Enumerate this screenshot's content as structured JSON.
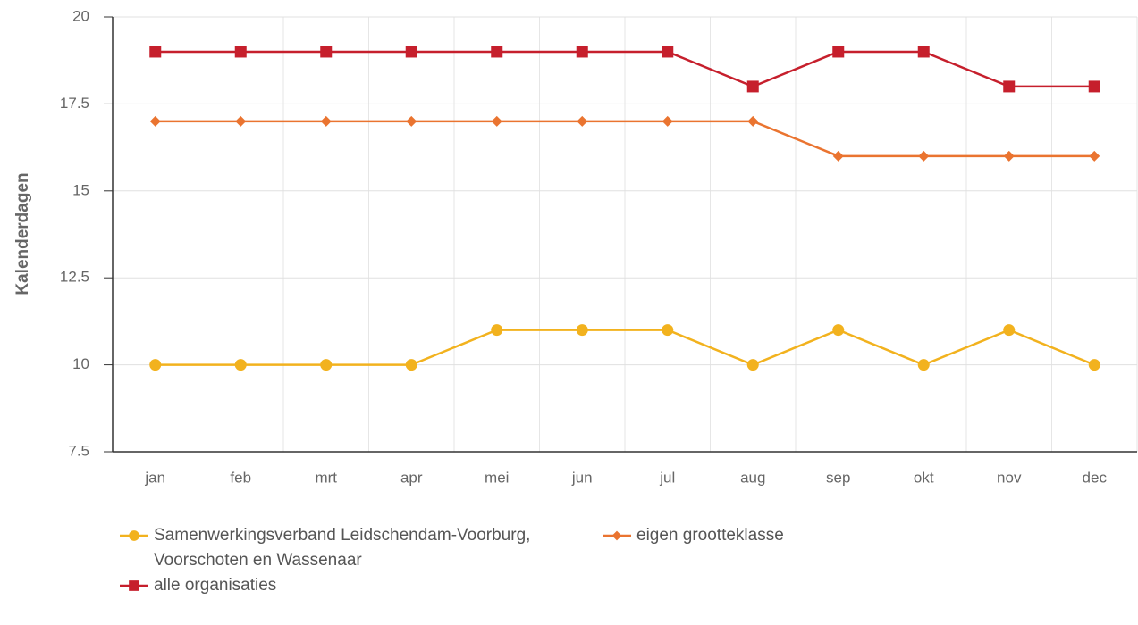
{
  "chart_data": {
    "type": "line",
    "y_label": "Kalenderdagen",
    "categories": [
      "jan",
      "feb",
      "mrt",
      "apr",
      "mei",
      "jun",
      "jul",
      "aug",
      "sep",
      "okt",
      "nov",
      "dec"
    ],
    "series": [
      {
        "name": "Samenwerkingsverband Leidschendam-Voorburg, Voorschoten en Wassenaar",
        "color": "#f2b21e",
        "marker": "circle",
        "values": [
          10,
          10,
          10,
          10,
          11,
          11,
          11,
          10,
          11,
          10,
          11,
          10
        ]
      },
      {
        "name": "eigen grootteklasse",
        "color": "#ea7430",
        "marker": "diamond",
        "values": [
          17,
          17,
          17,
          17,
          17,
          17,
          17,
          17,
          16,
          16,
          16,
          16
        ]
      },
      {
        "name": "alle organisaties",
        "color": "#c61f2c",
        "marker": "square",
        "values": [
          19,
          19,
          19,
          19,
          19,
          19,
          19,
          18,
          19,
          19,
          18,
          18
        ]
      }
    ],
    "ylim": [
      7.5,
      20
    ],
    "yticks": [
      7.5,
      10,
      12.5,
      15,
      17.5,
      20
    ],
    "grid": true,
    "legend": "bottom"
  }
}
